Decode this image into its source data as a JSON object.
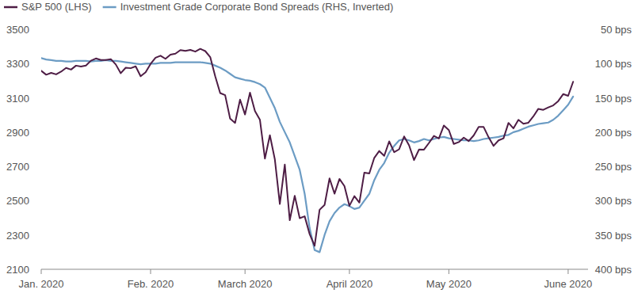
{
  "chart_data": {
    "type": "line",
    "legend": "top-left",
    "x": [
      0,
      1,
      2,
      3,
      4,
      5,
      6,
      7,
      8,
      9,
      10,
      11,
      12,
      13,
      14,
      15,
      16,
      17,
      18,
      19,
      20,
      21,
      22,
      23,
      24,
      25,
      26,
      27,
      28,
      29,
      30,
      31,
      32,
      33,
      34,
      35,
      36,
      37,
      38,
      39,
      40,
      41,
      42,
      43,
      44,
      45,
      46,
      47,
      48,
      49,
      50,
      51,
      52,
      53,
      54,
      55,
      56,
      57,
      58,
      59,
      60,
      61,
      62,
      63,
      64,
      65,
      66,
      67,
      68,
      69,
      70,
      71,
      72,
      73,
      74,
      75,
      76,
      77,
      78,
      79,
      80,
      81,
      82,
      83,
      84,
      85,
      86,
      87,
      88,
      89,
      90,
      91,
      92,
      93,
      94,
      95,
      96,
      97,
      98,
      99,
      100,
      101,
      102,
      103,
      104,
      105,
      106,
      107
    ],
    "xlim": [
      0,
      110
    ],
    "xticks": [
      {
        "value": 0,
        "label": "Jan. 2020"
      },
      {
        "value": 22,
        "label": "Feb. 2020"
      },
      {
        "value": 41,
        "label": "March 2020"
      },
      {
        "value": 62,
        "label": "April 2020"
      },
      {
        "value": 82,
        "label": "May 2020"
      },
      {
        "value": 106,
        "label": "June 2020"
      }
    ],
    "ylim": [
      2100,
      3500
    ],
    "yticks": [
      2100,
      2300,
      2500,
      2700,
      2900,
      3100,
      3300,
      3500
    ],
    "y2lim": [
      400,
      50
    ],
    "y2ticks": [
      {
        "value": 50,
        "label": "50 bps"
      },
      {
        "value": 100,
        "label": "100 bps"
      },
      {
        "value": 150,
        "label": "150 bps"
      },
      {
        "value": 200,
        "label": "200 bps"
      },
      {
        "value": 250,
        "label": "250 bps"
      },
      {
        "value": 300,
        "label": "300 bps"
      },
      {
        "value": 350,
        "label": "350 bps"
      },
      {
        "value": 400,
        "label": "400 bps"
      }
    ],
    "series": [
      {
        "name": "S&P 500 (LHS)",
        "color": "#4e1d45",
        "values": [
          3258,
          3235,
          3246,
          3237,
          3253,
          3275,
          3265,
          3288,
          3283,
          3289,
          3317,
          3330,
          3321,
          3321,
          3326,
          3295,
          3244,
          3276,
          3273,
          3284,
          3226,
          3249,
          3298,
          3334,
          3346,
          3328,
          3352,
          3358,
          3379,
          3374,
          3380,
          3370,
          3386,
          3373,
          3338,
          3226,
          3128,
          3116,
          2979,
          2954,
          3090,
          3003,
          3130,
          3023,
          2972,
          2746,
          2882,
          2741,
          2481,
          2711,
          2386,
          2529,
          2398,
          2409,
          2305,
          2237,
          2447,
          2475,
          2630,
          2541,
          2627,
          2585,
          2470,
          2527,
          2489,
          2664,
          2659,
          2750,
          2790,
          2762,
          2846,
          2783,
          2800,
          2875,
          2823,
          2737,
          2799,
          2798,
          2837,
          2878,
          2863,
          2939,
          2912,
          2831,
          2842,
          2868,
          2848,
          2881,
          2930,
          2930,
          2870,
          2820,
          2852,
          2864,
          2954,
          2922,
          2972,
          2949,
          2955,
          2992,
          3036,
          3030,
          3044,
          3056,
          3081,
          3122,
          3112,
          3194
        ]
      },
      {
        "name": "Investment Grade Corporate Bond Spreads (RHS, Inverted)",
        "color": "#6c9cc4",
        "axis": "y2",
        "values": [
          92,
          94,
          95,
          96,
          96,
          97,
          97,
          96,
          96,
          96,
          97,
          96,
          96,
          95,
          96,
          96,
          97,
          98,
          99,
          100,
          101,
          100,
          100,
          100,
          99,
          99,
          99,
          98,
          98,
          98,
          98,
          98,
          98,
          99,
          100,
          103,
          106,
          110,
          115,
          120,
          122,
          124,
          125,
          127,
          130,
          135,
          150,
          165,
          185,
          200,
          215,
          235,
          255,
          290,
          340,
          372,
          375,
          350,
          330,
          318,
          310,
          305,
          308,
          312,
          310,
          300,
          290,
          270,
          255,
          245,
          230,
          220,
          212,
          210,
          212,
          215,
          213,
          210,
          212,
          210,
          208,
          207,
          209,
          210,
          211,
          212,
          212,
          213,
          212,
          210,
          209,
          208,
          207,
          205,
          204,
          200,
          198,
          195,
          192,
          190,
          188,
          187,
          186,
          182,
          176,
          168,
          160,
          148
        ]
      }
    ]
  }
}
